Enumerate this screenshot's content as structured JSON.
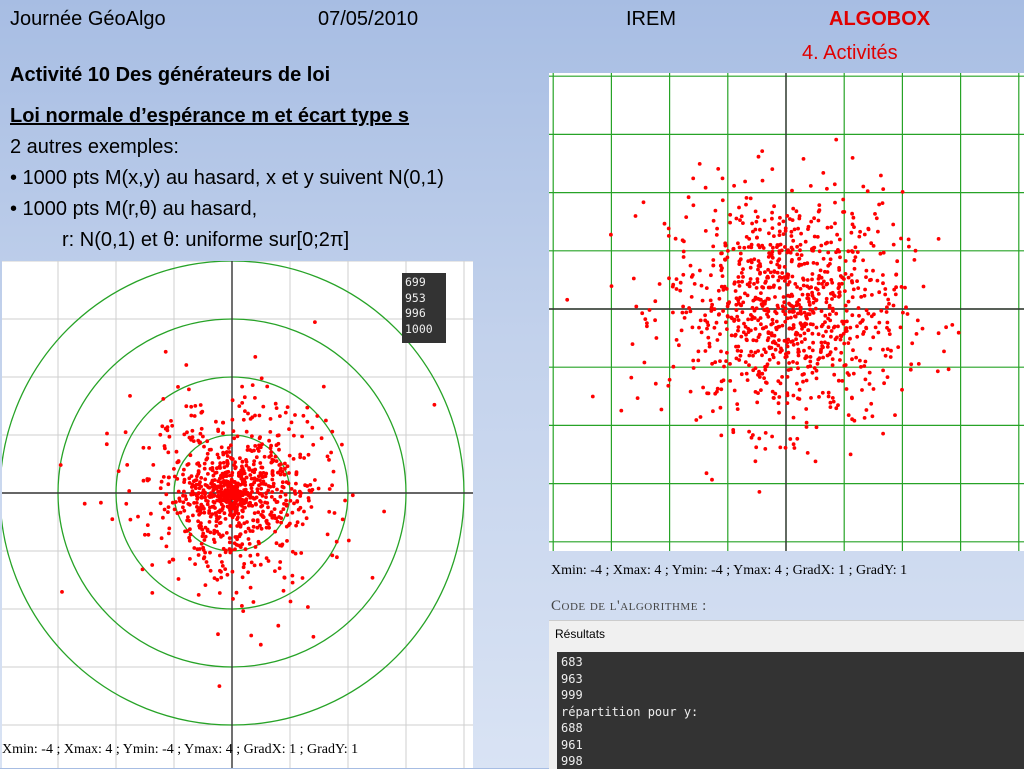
{
  "header": {
    "left": "Journée GéoAlgo",
    "date": "07/05/2010",
    "center": "IREM",
    "brand": "ALGOBOX",
    "section": "4. Activités"
  },
  "body": {
    "activity": "Activité 10  Des générateurs de loi",
    "subtitle": "Loi normale d’espérance m et écart type s",
    "intro": "2 autres exemples:",
    "bullet1": "• 1000 pts M(x,y) au hasard, x et y suivent N(0,1)",
    "bullet2": "• 1000 pts M(r,θ) au hasard,",
    "bullet2_detail": "r: N(0,1) et θ: uniforme sur[0;2π]"
  },
  "colors": {
    "point": "#ff0000",
    "grid": "#27a327",
    "axis": "#333333"
  },
  "plot_left": {
    "counter": [
      "699",
      "953",
      "996",
      "1000"
    ],
    "caption": "Xmin: -4 ; Xmax: 4 ; Ymin: -4 ; Ymax: 4 ; GradX: 1 ; GradY: 1"
  },
  "plot_right": {
    "caption": "Xmin: -4 ; Xmax: 4 ; Ymin: -4 ; Ymax: 4 ; GradX: 1 ; GradY: 1"
  },
  "code_title": "Code de l'algorithme :",
  "results": {
    "title": "Résultats",
    "lines": [
      "683",
      "963",
      "999",
      "répartition pour y:",
      "688",
      "961",
      "998"
    ]
  }
}
